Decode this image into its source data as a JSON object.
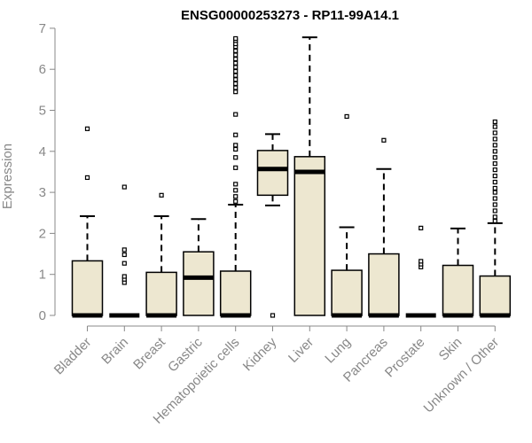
{
  "chart_data": {
    "type": "box",
    "title": "ENSG00000253273 - RP11-99A14.1",
    "xlabel": "",
    "ylabel": "Expression",
    "ylim": [
      0,
      7
    ],
    "yticks": [
      0,
      1,
      2,
      3,
      4,
      5,
      6,
      7
    ],
    "grid": false,
    "colors": {
      "box_fill": "#ede7d0",
      "box_stroke": "#000000",
      "axis": "#888888",
      "title": "#000000"
    },
    "categories": [
      "Bladder",
      "Brain",
      "Breast",
      "Gastric",
      "Hematopoietic cells",
      "Kidney",
      "Liver",
      "Lung",
      "Pancreas",
      "Prostate",
      "Skin",
      "Unknown / Other"
    ],
    "boxes": [
      {
        "min": 0,
        "q1": 0,
        "median": 0,
        "q3": 1.33,
        "max": 2.42,
        "outliers": [
          3.36,
          4.55
        ]
      },
      {
        "min": 0,
        "q1": 0,
        "median": 0,
        "q3": 0,
        "max": 0,
        "outliers": [
          0.8,
          0.88,
          0.95,
          1.27,
          1.48,
          1.6,
          3.13
        ]
      },
      {
        "min": 0,
        "q1": 0,
        "median": 0,
        "q3": 1.05,
        "max": 2.42,
        "outliers": [
          2.93
        ]
      },
      {
        "min": 0,
        "q1": 0,
        "median": 0.92,
        "q3": 1.55,
        "max": 2.35,
        "outliers": []
      },
      {
        "min": 0,
        "q1": 0,
        "median": 0,
        "q3": 1.08,
        "max": 2.7,
        "outliers": [
          2.78,
          2.9,
          3.05,
          3.2,
          3.6,
          3.85,
          4.05,
          4.15,
          4.4,
          4.9,
          5.45,
          5.55,
          5.65,
          5.75,
          5.85,
          5.95,
          6.05,
          6.15,
          6.25,
          6.35,
          6.45,
          6.55,
          6.62,
          6.7,
          6.75
        ]
      },
      {
        "min": 2.68,
        "q1": 2.93,
        "median": 3.57,
        "q3": 4.02,
        "max": 4.42,
        "outliers": [
          0
        ]
      },
      {
        "min": 0,
        "q1": 0,
        "median": 3.5,
        "q3": 3.87,
        "max": 6.78,
        "outliers": []
      },
      {
        "min": 0,
        "q1": 0,
        "median": 0,
        "q3": 1.1,
        "max": 2.15,
        "outliers": [
          4.85
        ]
      },
      {
        "min": 0,
        "q1": 0,
        "median": 0,
        "q3": 1.5,
        "max": 3.57,
        "outliers": [
          4.27
        ]
      },
      {
        "min": 0,
        "q1": 0,
        "median": 0,
        "q3": 0,
        "max": 0,
        "outliers": [
          1.18,
          1.25,
          1.32,
          2.13
        ]
      },
      {
        "min": 0,
        "q1": 0,
        "median": 0,
        "q3": 1.22,
        "max": 2.12,
        "outliers": []
      },
      {
        "min": 0,
        "q1": 0,
        "median": 0,
        "q3": 0.96,
        "max": 2.25,
        "outliers": [
          2.3,
          2.4,
          2.55,
          2.7,
          2.85,
          3.0,
          3.1,
          3.25,
          3.4,
          3.55,
          3.7,
          3.85,
          4.0,
          4.15,
          4.3,
          4.45,
          4.6,
          4.72
        ]
      }
    ]
  }
}
